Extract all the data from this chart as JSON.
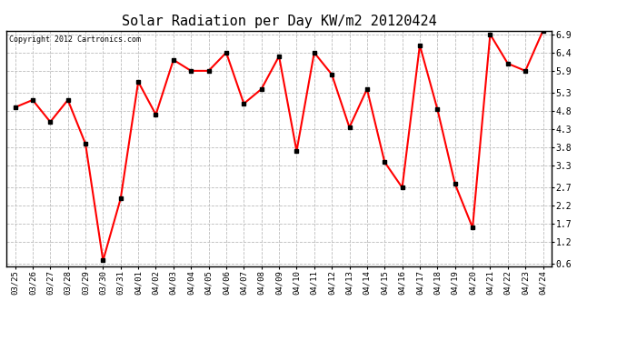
{
  "title": "Solar Radiation per Day KW/m2 20120424",
  "copyright": "Copyright 2012 Cartronics.com",
  "dates": [
    "03/25",
    "03/26",
    "03/27",
    "03/28",
    "03/29",
    "03/30",
    "03/31",
    "04/01",
    "04/02",
    "04/03",
    "04/04",
    "04/05",
    "04/06",
    "04/07",
    "04/08",
    "04/09",
    "04/10",
    "04/11",
    "04/12",
    "04/13",
    "04/14",
    "04/15",
    "04/16",
    "04/17",
    "04/18",
    "04/19",
    "04/20",
    "04/21",
    "04/22",
    "04/23",
    "04/24"
  ],
  "values": [
    4.9,
    5.1,
    4.5,
    5.1,
    3.9,
    0.7,
    2.4,
    5.6,
    4.7,
    6.2,
    5.9,
    5.9,
    6.4,
    5.0,
    5.4,
    6.3,
    3.7,
    6.4,
    5.8,
    4.35,
    5.4,
    3.4,
    2.7,
    6.6,
    4.85,
    2.8,
    1.6,
    6.9,
    6.1,
    5.9,
    7.0
  ],
  "yticks": [
    0.6,
    1.2,
    1.7,
    2.2,
    2.7,
    3.3,
    3.8,
    4.3,
    4.8,
    5.3,
    5.9,
    6.4,
    6.9
  ],
  "ymin": 0.55,
  "ymax": 7.0,
  "line_color": "red",
  "marker_color": "black",
  "bg_color": "white",
  "grid_color": "#bbbbbb",
  "title_fontsize": 11,
  "copyright_fontsize": 6,
  "tick_fontsize": 6.5,
  "ytick_fontsize": 7
}
